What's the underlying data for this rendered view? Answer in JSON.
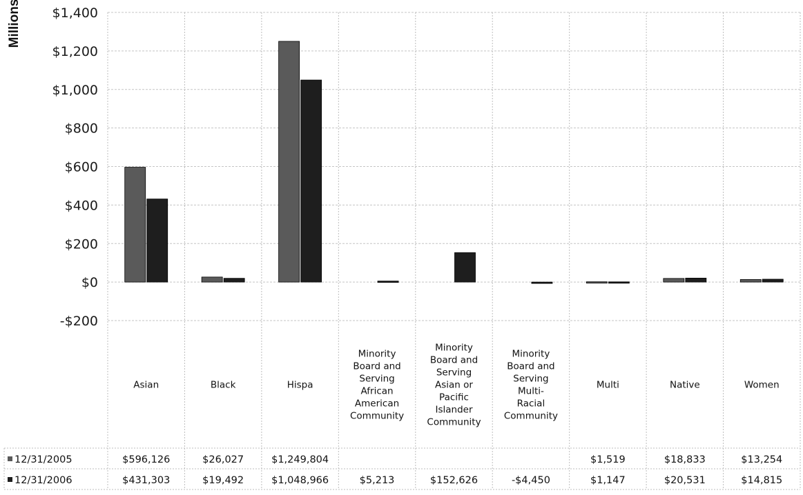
{
  "chart_data": {
    "type": "bar",
    "ylabel": "Millions",
    "ylim": [
      -200,
      1400
    ],
    "yticks": [
      -200,
      0,
      200,
      400,
      600,
      800,
      1000,
      1200,
      1400
    ],
    "ytick_labels": [
      "-$200",
      "$0",
      "$200",
      "$400",
      "$600",
      "$800",
      "$1,000",
      "$1,200",
      "$1,400"
    ],
    "grid": true,
    "legend": "table-bottom",
    "categories": [
      "Asian",
      "Black",
      "Hispa",
      "Minority Board and Serving African American Community",
      "Minority Board and Serving Asian or Pacific Islander Community",
      "Minority Board and Serving Multi-Racial Community",
      "Multi",
      "Native",
      "Women"
    ],
    "category_lines": [
      [
        "Asian"
      ],
      [
        "Black"
      ],
      [
        "Hispa"
      ],
      [
        "Minority",
        "Board and",
        "Serving",
        "African",
        "American",
        "Community"
      ],
      [
        "Minority",
        "Board and",
        "Serving",
        "Asian or",
        "Pacific",
        "Islander",
        "Community"
      ],
      [
        "Minority",
        "Board and",
        "Serving",
        "Multi-",
        "Racial",
        "Community"
      ],
      [
        "Multi"
      ],
      [
        "Native"
      ],
      [
        "Women"
      ]
    ],
    "series": [
      {
        "name": "12/31/2005",
        "color": "#5a5a5a",
        "values": [
          596.126,
          26.027,
          1249.804,
          null,
          null,
          null,
          1.519,
          18.833,
          13.254
        ],
        "table_values": [
          "$596,126",
          "$26,027",
          "$1,249,804",
          "",
          "",
          "",
          "$1,519",
          "$18,833",
          "$13,254"
        ]
      },
      {
        "name": "12/31/2006",
        "color": "#1e1e1e",
        "values": [
          431.303,
          19.492,
          1048.966,
          5.213,
          152.626,
          -4.45,
          1.147,
          20.531,
          14.815
        ],
        "table_values": [
          "$431,303",
          "$19,492",
          "$1,048,966",
          "$5,213",
          "$152,626",
          "-$4,450",
          "$1,147",
          "$20,531",
          "$14,815"
        ]
      }
    ]
  }
}
